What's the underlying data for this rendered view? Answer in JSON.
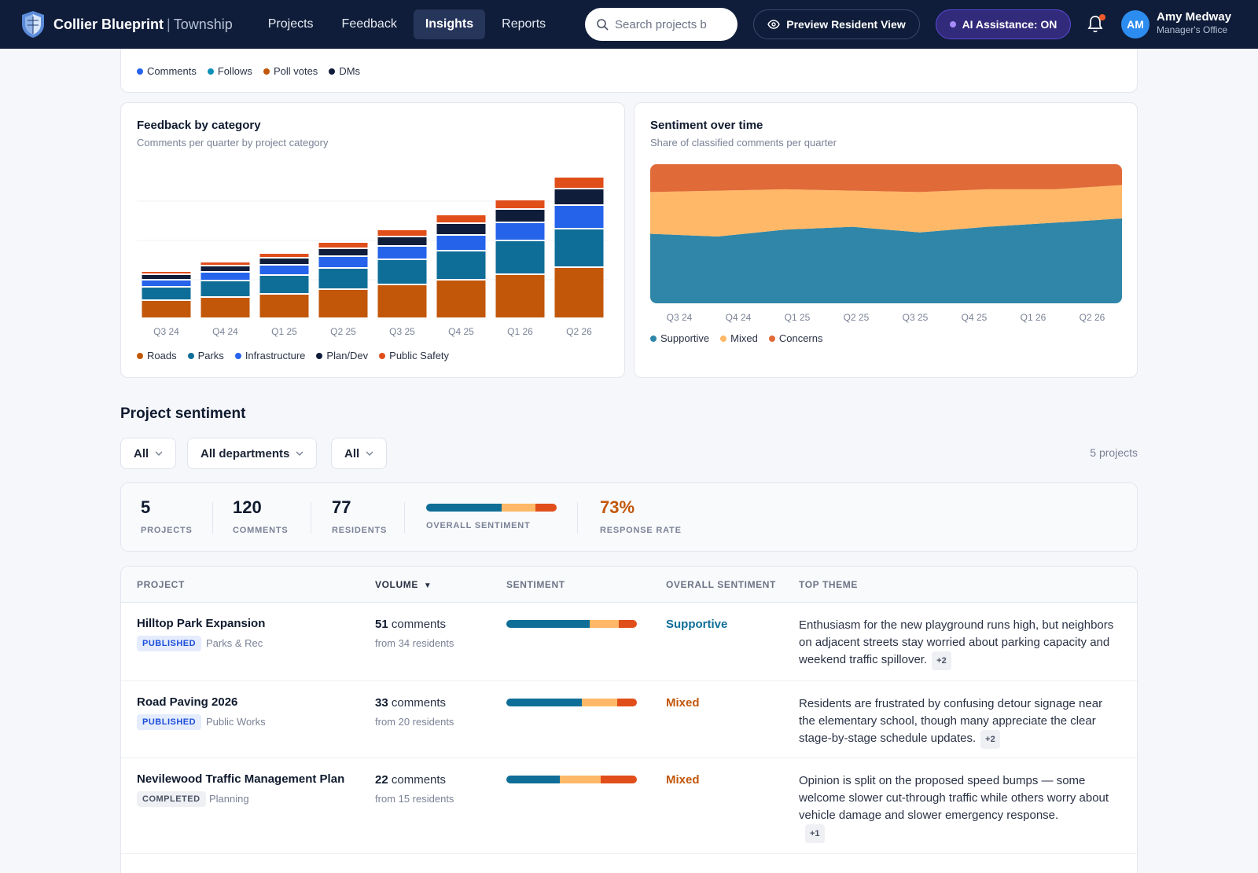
{
  "nav": {
    "brand": "Collier Blueprint",
    "brand_sep": "|",
    "brand_sub": "Township",
    "links": [
      "Projects",
      "Feedback",
      "Insights",
      "Reports"
    ],
    "active": "Insights",
    "search_placeholder": "Search projects b",
    "preview_label": "Preview Resident View",
    "ai_label": "AI Assistance: ON",
    "user_initials": "AM",
    "user_name": "Amy Medway",
    "user_role": "Manager's Office"
  },
  "engagement_card": {
    "legend": [
      {
        "label": "Comments",
        "color": "#2563eb"
      },
      {
        "label": "Follows",
        "color": "#0e90b8"
      },
      {
        "label": "Poll votes",
        "color": "#c2570a"
      },
      {
        "label": "DMs",
        "color": "#0f1d3a"
      }
    ]
  },
  "category_card": {
    "title": "Feedback by category",
    "subtitle": "Comments per quarter by project category"
  },
  "sentiment_card": {
    "title": "Sentiment over time",
    "subtitle": "Share of classified comments per quarter"
  },
  "chart_data": [
    {
      "type": "bar",
      "stacked": true,
      "title": "Feedback by category",
      "subtitle": "Comments per quarter by project category",
      "categories": [
        "Q3 24",
        "Q4 24",
        "Q1 25",
        "Q2 25",
        "Q3 25",
        "Q4 25",
        "Q1 26",
        "Q2 26"
      ],
      "series": [
        {
          "name": "Roads",
          "color": "#c2570a",
          "values": [
            23,
            27,
            31,
            37,
            43,
            49,
            56,
            65
          ]
        },
        {
          "name": "Parks",
          "color": "#0f6e98",
          "values": [
            17,
            21,
            24,
            27,
            32,
            37,
            43,
            49
          ]
        },
        {
          "name": "Infrastructure",
          "color": "#2563eb",
          "values": [
            9,
            11,
            13,
            15,
            17,
            20,
            23,
            30
          ]
        },
        {
          "name": "Plan/Dev",
          "color": "#0f1d3a",
          "values": [
            7,
            8,
            9,
            10,
            12,
            15,
            17,
            21
          ]
        },
        {
          "name": "Public Safety",
          "color": "#e04e1a",
          "values": [
            4,
            5,
            6,
            8,
            9,
            11,
            12,
            15
          ]
        }
      ],
      "ylim": [
        0,
        200
      ],
      "grid": true,
      "legend_position": "bottom"
    },
    {
      "type": "area",
      "stacked": true,
      "normalized": true,
      "title": "Sentiment over time",
      "subtitle": "Share of classified comments per quarter",
      "categories": [
        "Q3 24",
        "Q4 24",
        "Q1 25",
        "Q2 25",
        "Q3 25",
        "Q4 25",
        "Q1 26",
        "Q2 26"
      ],
      "series": [
        {
          "name": "Supportive",
          "color": "#2f86a8",
          "values": [
            50,
            48,
            53,
            55,
            51,
            55,
            58,
            61
          ]
        },
        {
          "name": "Mixed",
          "color": "#ffb867",
          "values": [
            30,
            33,
            29,
            26,
            29,
            27,
            24,
            24
          ]
        },
        {
          "name": "Concerns",
          "color": "#e06a38",
          "values": [
            20,
            19,
            18,
            19,
            20,
            18,
            18,
            15
          ]
        }
      ],
      "ylim": [
        0,
        100
      ],
      "legend_position": "bottom"
    }
  ],
  "project_sentiment": {
    "title": "Project sentiment",
    "filters": [
      "All",
      "All departments",
      "All"
    ],
    "count_label": "5 projects",
    "summary": {
      "projects": {
        "value": "5",
        "label": "PROJECTS"
      },
      "comments": {
        "value": "120",
        "label": "COMMENTS"
      },
      "residents": {
        "value": "77",
        "label": "RESIDENTS"
      },
      "overall": {
        "label": "OVERALL SENTIMENT",
        "supportive": 0.58,
        "mixed": 0.26,
        "concerns": 0.16
      },
      "response": {
        "value": "73%",
        "label": "RESPONSE RATE"
      }
    },
    "columns": [
      "PROJECT",
      "VOLUME",
      "SENTIMENT",
      "OVERALL SENTIMENT",
      "TOP THEME"
    ],
    "sort_indicator": "▼",
    "rows": [
      {
        "name": "Hilltop Park Expansion",
        "status": "PUBLISHED",
        "department": "Parks & Rec",
        "comments": "51",
        "comments_label": "comments",
        "residents": "from 34 residents",
        "sentiment": {
          "supportive": 0.64,
          "mixed": 0.22,
          "concerns": 0.14
        },
        "overall": "Supportive",
        "overall_color": "#0f6e98",
        "theme": "Enthusiasm for the new playground runs high, but neighbors on adjacent streets stay worried about parking capacity and weekend traffic spillover.",
        "more": "+2"
      },
      {
        "name": "Road Paving 2026",
        "status": "PUBLISHED",
        "department": "Public Works",
        "comments": "33",
        "comments_label": "comments",
        "residents": "from 20 residents",
        "sentiment": {
          "supportive": 0.58,
          "mixed": 0.27,
          "concerns": 0.15
        },
        "overall": "Mixed",
        "overall_color": "#c2570a",
        "theme": "Residents are frustrated by confusing detour signage near the elementary school, though many appreciate the clear stage-by-stage schedule updates.",
        "more": "+2"
      },
      {
        "name": "Nevilewood Traffic Management Plan",
        "status": "COMPLETED",
        "department": "Planning",
        "comments": "22",
        "comments_label": "comments",
        "residents": "from 15 residents",
        "sentiment": {
          "supportive": 0.41,
          "mixed": 0.31,
          "concerns": 0.28
        },
        "overall": "Mixed",
        "overall_color": "#c2570a",
        "theme": "Opinion is split on the proposed speed bumps — some welcome slower cut-through traffic while others worry about vehicle damage and slower emergency response.",
        "more": "+1"
      }
    ]
  }
}
